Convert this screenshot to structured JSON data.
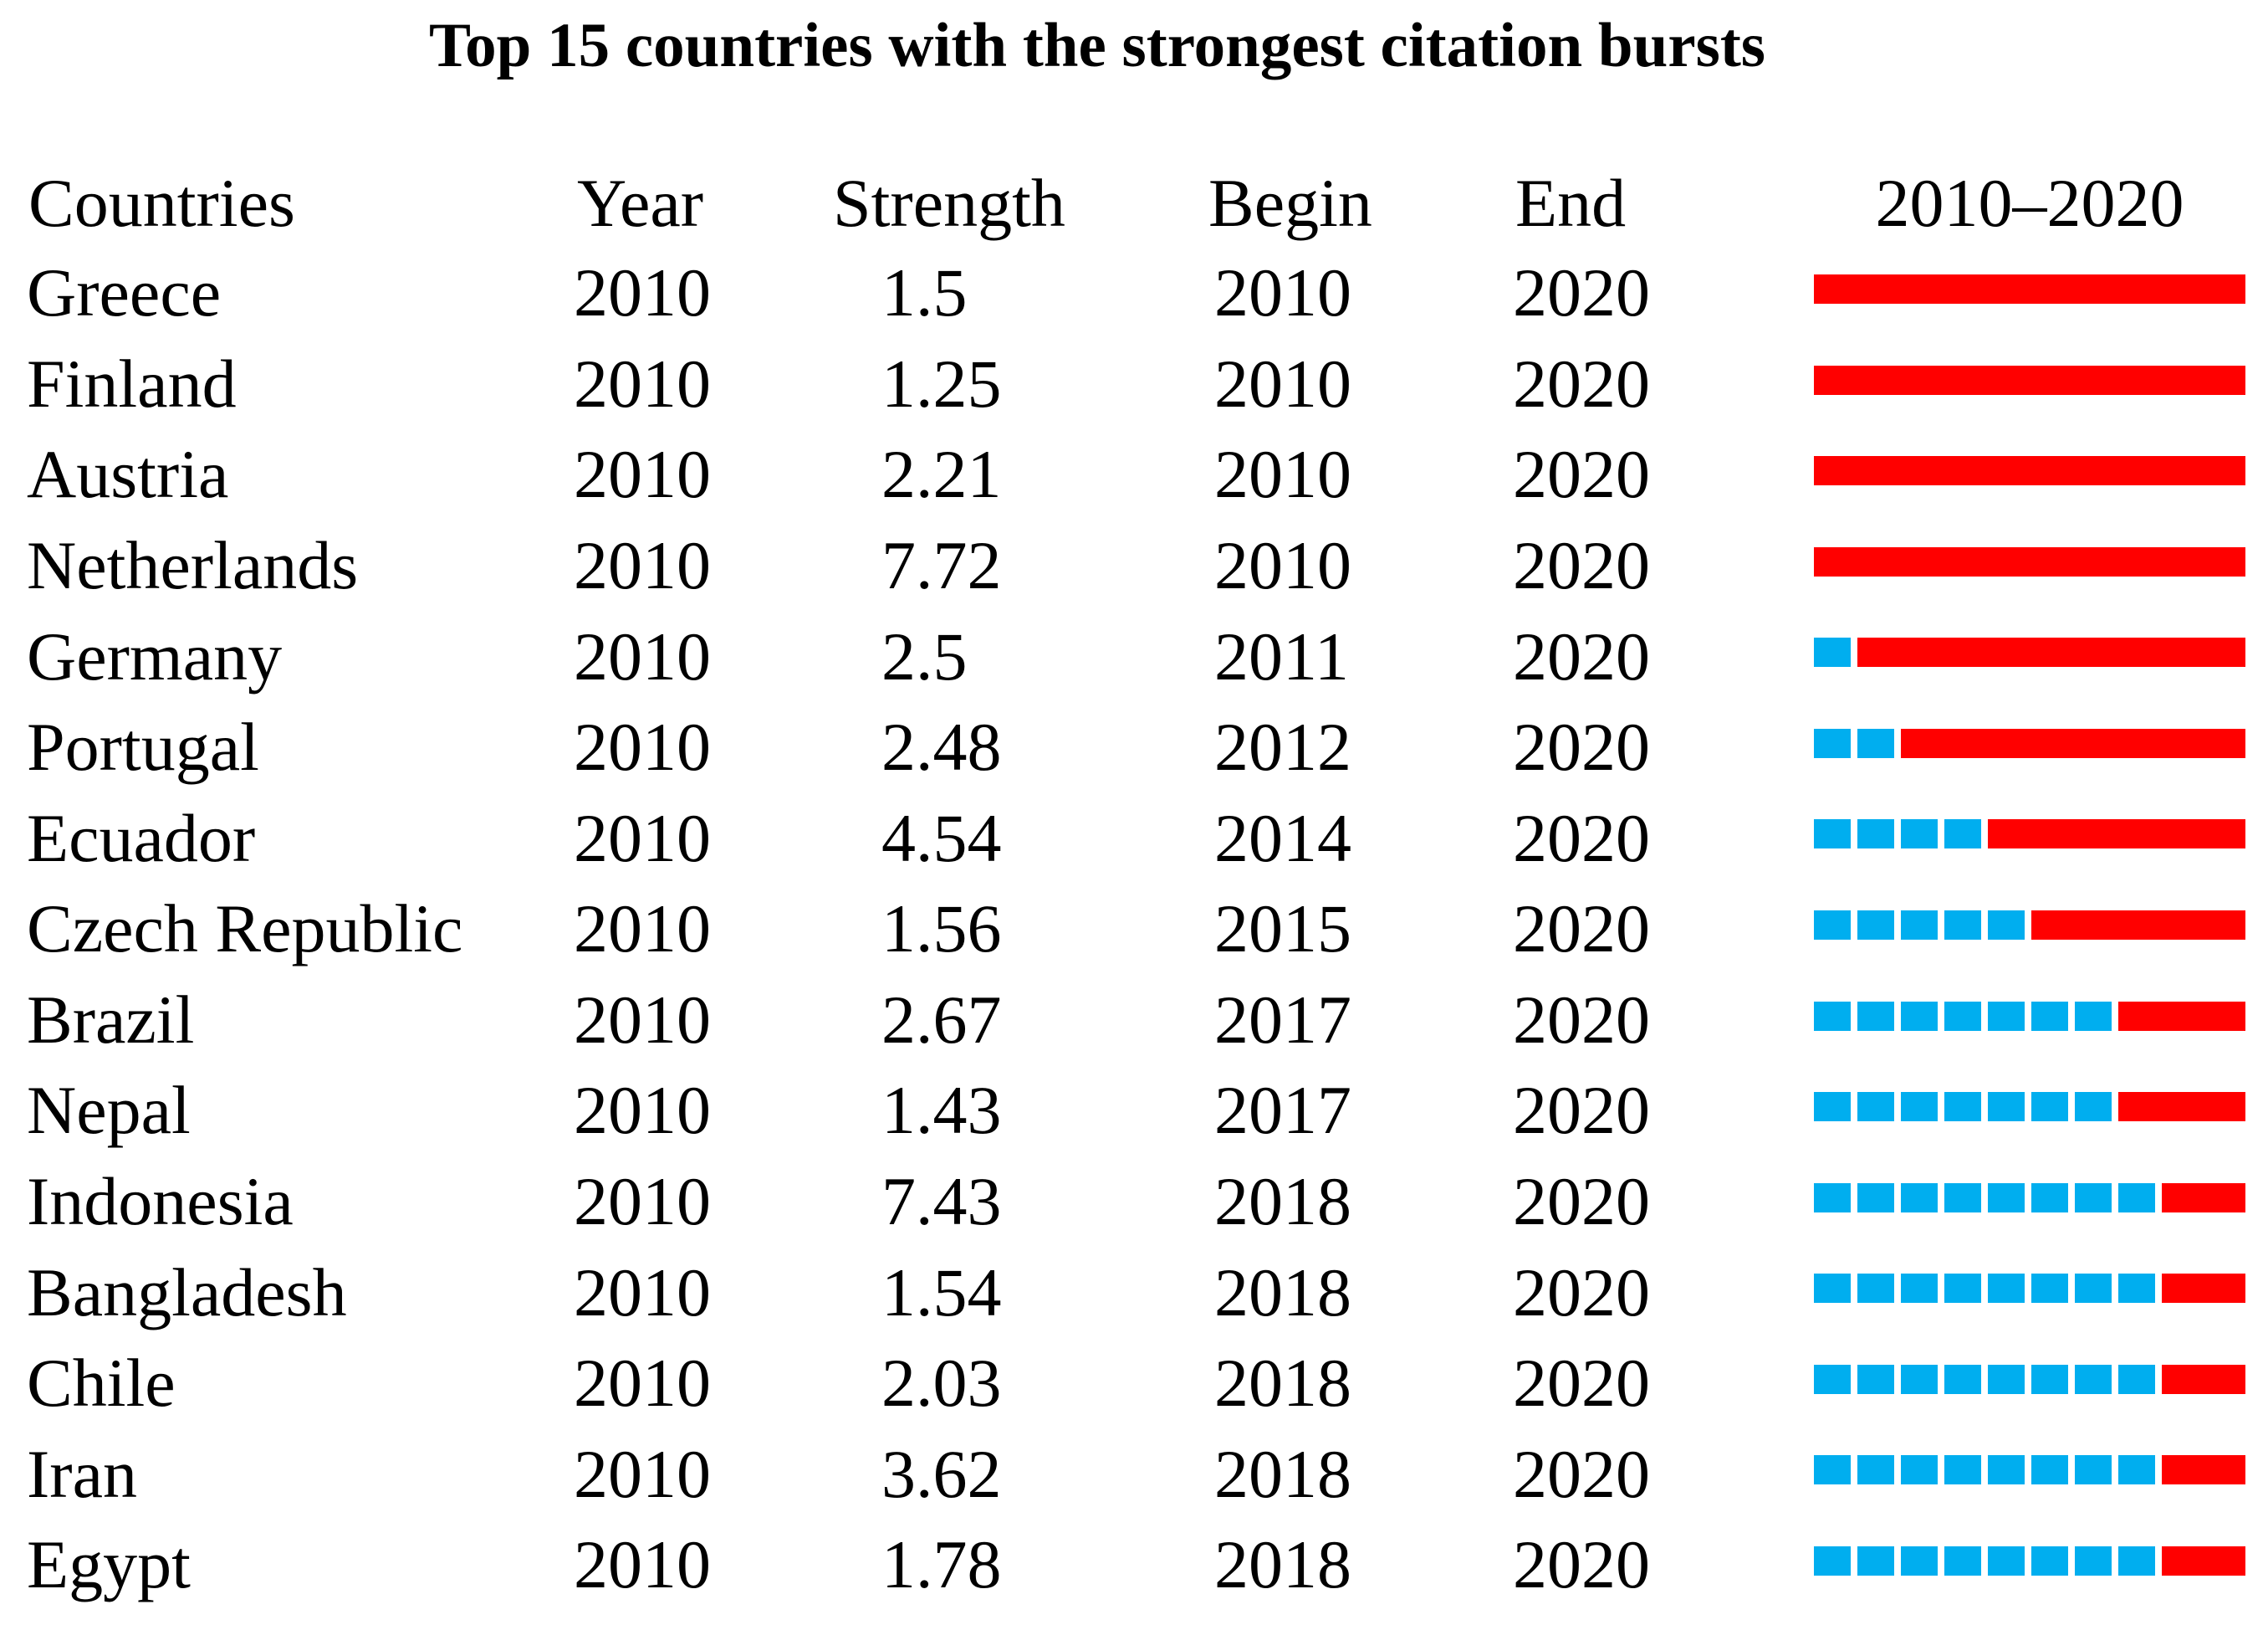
{
  "title": "Top 15 countries with the strongest citation bursts",
  "headers": {
    "countries": "Countries",
    "year": "Year",
    "strength": "Strength",
    "begin": "Begin",
    "end": "End",
    "period": "2010–2020"
  },
  "colors": {
    "burst": "#FF0000",
    "non_burst": "#00AEEF"
  },
  "chart_data": {
    "type": "table",
    "title": "Top 15 countries with the strongest citation bursts",
    "columns": [
      "Countries",
      "Year",
      "Strength",
      "Begin",
      "End",
      "2010–2020"
    ],
    "timeline": {
      "start": 2010,
      "end": 2020
    },
    "legend": {
      "burst_years_color": "#FF0000",
      "non_burst_years_color": "#00AEEF"
    },
    "rows": [
      {
        "country": "Greece",
        "year": "2010",
        "strength": "1.5",
        "begin": 2010,
        "end": 2020
      },
      {
        "country": "Finland",
        "year": "2010",
        "strength": "1.25",
        "begin": 2010,
        "end": 2020
      },
      {
        "country": "Austria",
        "year": "2010",
        "strength": "2.21",
        "begin": 2010,
        "end": 2020
      },
      {
        "country": "Netherlands",
        "year": "2010",
        "strength": "7.72",
        "begin": 2010,
        "end": 2020
      },
      {
        "country": "Germany",
        "year": "2010",
        "strength": "2.5",
        "begin": 2011,
        "end": 2020
      },
      {
        "country": "Portugal",
        "year": "2010",
        "strength": "2.48",
        "begin": 2012,
        "end": 2020
      },
      {
        "country": "Ecuador",
        "year": "2010",
        "strength": "4.54",
        "begin": 2014,
        "end": 2020
      },
      {
        "country": "Czech Republic",
        "year": "2010",
        "strength": "1.56",
        "begin": 2015,
        "end": 2020
      },
      {
        "country": "Brazil",
        "year": "2010",
        "strength": "2.67",
        "begin": 2017,
        "end": 2020
      },
      {
        "country": "Nepal",
        "year": "2010",
        "strength": "1.43",
        "begin": 2017,
        "end": 2020
      },
      {
        "country": "Indonesia",
        "year": "2010",
        "strength": "7.43",
        "begin": 2018,
        "end": 2020
      },
      {
        "country": "Bangladesh",
        "year": "2010",
        "strength": "1.54",
        "begin": 2018,
        "end": 2020
      },
      {
        "country": "Chile",
        "year": "2010",
        "strength": "2.03",
        "begin": 2018,
        "end": 2020
      },
      {
        "country": "Iran",
        "year": "2010",
        "strength": "3.62",
        "begin": 2018,
        "end": 2020
      },
      {
        "country": "Egypt",
        "year": "2010",
        "strength": "1.78",
        "begin": 2018,
        "end": 2020
      }
    ]
  }
}
